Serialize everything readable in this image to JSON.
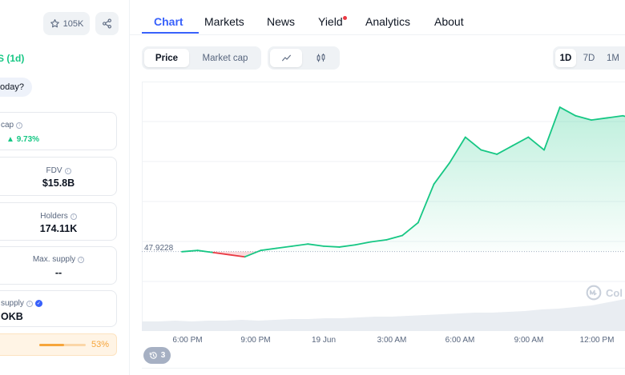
{
  "header": {
    "watchlist_count": "105K",
    "star_icon": "star-icon",
    "share_icon": "share-icon"
  },
  "overview": {
    "change_1d": "S (1d)",
    "today_prompt": "oday?"
  },
  "stats": {
    "market_cap": {
      "label": "cap",
      "change": "9.73%"
    },
    "fdv": {
      "label": "FDV",
      "value": "$15.8B"
    },
    "holders": {
      "label": "Holders",
      "value": "174.11K"
    },
    "max_supply": {
      "label": "Max. supply",
      "value": "--"
    },
    "total_supply": {
      "label": "supply",
      "value": "OKB"
    },
    "progress": {
      "percent_label": "53%",
      "fraction": 0.53
    }
  },
  "tabs": [
    {
      "label": "Chart",
      "active": true
    },
    {
      "label": "Markets"
    },
    {
      "label": "News"
    },
    {
      "label": "Yield",
      "has_dot": true
    },
    {
      "label": "Analytics"
    },
    {
      "label": "About"
    }
  ],
  "controls": {
    "price_label": "Price",
    "market_cap_label": "Market cap",
    "line_icon": "line-chart-icon",
    "candle_icon": "candlestick-icon",
    "ranges": [
      "1D",
      "7D",
      "1M"
    ],
    "active_range": "1D"
  },
  "chart_data": {
    "type": "line",
    "reference_price": "47.9228",
    "x_ticks": [
      "6:00 PM",
      "9:00 PM",
      "19 Jun",
      "3:00 AM",
      "6:00 AM",
      "9:00 AM",
      "12:00 PM"
    ],
    "series": [
      {
        "values": [
          47.92,
          47.95,
          47.9,
          47.85,
          47.8,
          47.95,
          48.0,
          48.05,
          48.1,
          48.05,
          48.03,
          48.08,
          48.15,
          48.2,
          48.3,
          48.6,
          49.5,
          50.0,
          50.6,
          50.3,
          50.2,
          50.4,
          50.6,
          50.3,
          51.3,
          51.1,
          51.0,
          51.05,
          51.1,
          51.0
        ],
        "color": "#16c784",
        "below_reference_color": "#ea3943"
      }
    ],
    "grid": true,
    "watermark": "Col"
  },
  "history": {
    "count": "3",
    "icon": "history-icon"
  }
}
